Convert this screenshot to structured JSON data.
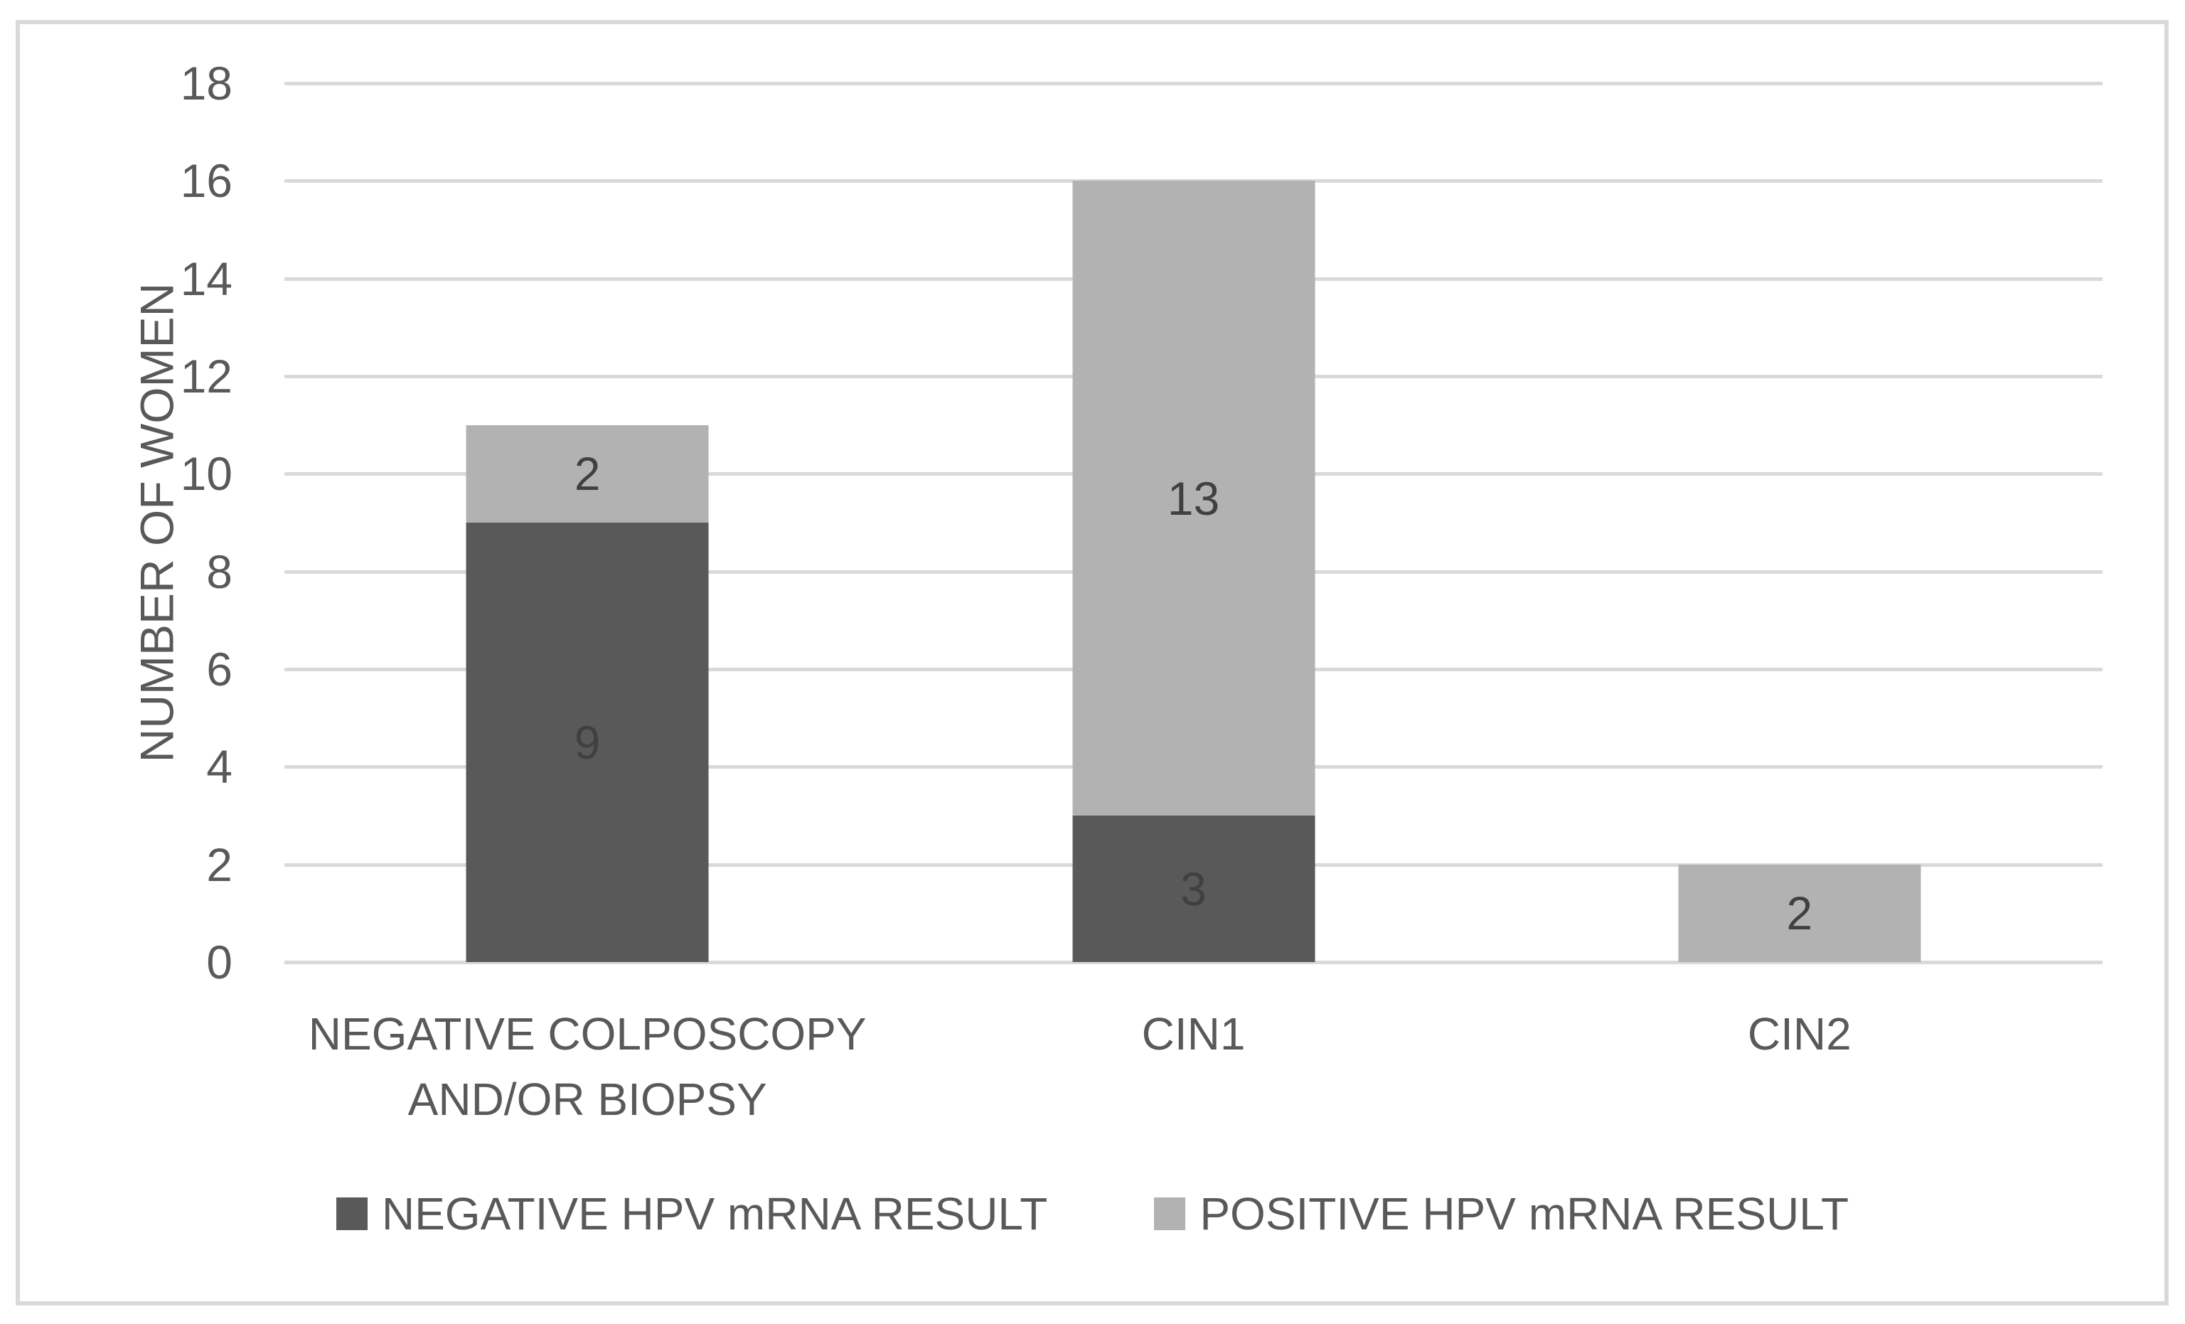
{
  "chart_data": {
    "type": "bar",
    "stacked": true,
    "categories": [
      "NEGATIVE COLPOSCOPY AND/OR BIOPSY",
      "CIN1",
      "CIN2"
    ],
    "series": [
      {
        "name": "NEGATIVE HPV mRNA RESULT",
        "color": "#595959",
        "values": [
          9,
          3,
          0
        ]
      },
      {
        "name": "POSITIVE HPV mRNA RESULT",
        "color": "#b2b2b2",
        "values": [
          2,
          13,
          2
        ]
      }
    ],
    "xlabel": "",
    "ylabel": "NUMBER OF WOMEN",
    "ylim": [
      0,
      18
    ],
    "ytick_step": 2,
    "grid": true,
    "legend_position": "bottom",
    "value_label_color": "#404040"
  },
  "styles": {
    "background": "#ffffff",
    "frame_border_color": "#d9d9d9",
    "gridline_color": "#d9d9d9",
    "axis_text_color": "#595959"
  }
}
